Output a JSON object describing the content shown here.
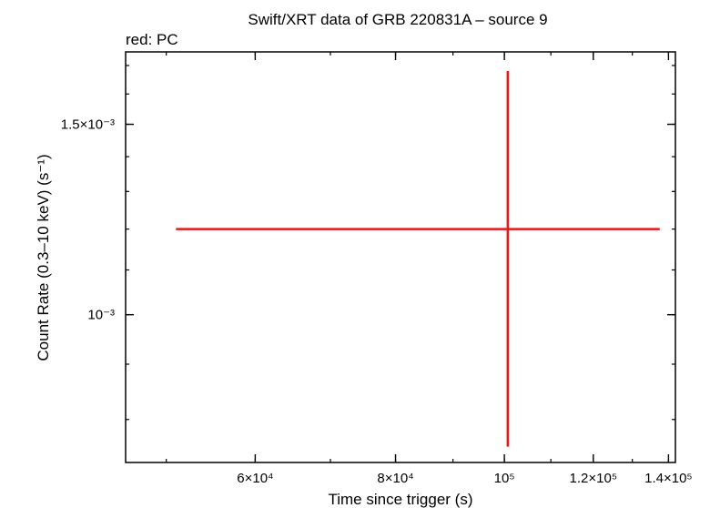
{
  "chart_data": {
    "type": "scatter",
    "title": "Swift/XRT data of GRB 220831A – source 9",
    "subtitle": "red: PC",
    "xlabel": "Time since trigger (s)",
    "ylabel": "Count Rate (0.3–10 keV) (s⁻¹)",
    "x_scale": "log",
    "y_scale": "log",
    "xlim": [
      46000,
      142000
    ],
    "ylim": [
      0.00073,
      0.00175
    ],
    "x_ticks": [
      {
        "value": 60000,
        "label": "6×10⁴"
      },
      {
        "value": 80000,
        "label": "8×10⁴"
      },
      {
        "value": 100000,
        "label": "10⁵"
      },
      {
        "value": 120000,
        "label": "1.2×10⁵"
      },
      {
        "value": 140000,
        "label": "1.4×10⁵"
      }
    ],
    "y_ticks": [
      {
        "value": 0.001,
        "label": "10⁻³"
      },
      {
        "value": 0.0015,
        "label": "1.5×10⁻³"
      }
    ],
    "grid": false,
    "series": [
      {
        "name": "PC",
        "color": "#e31a1c",
        "points": [
          {
            "x": 100700,
            "x_low": 51000,
            "x_high": 137500,
            "y": 0.0012,
            "y_low": 0.000755,
            "y_high": 0.00168
          }
        ]
      }
    ]
  }
}
